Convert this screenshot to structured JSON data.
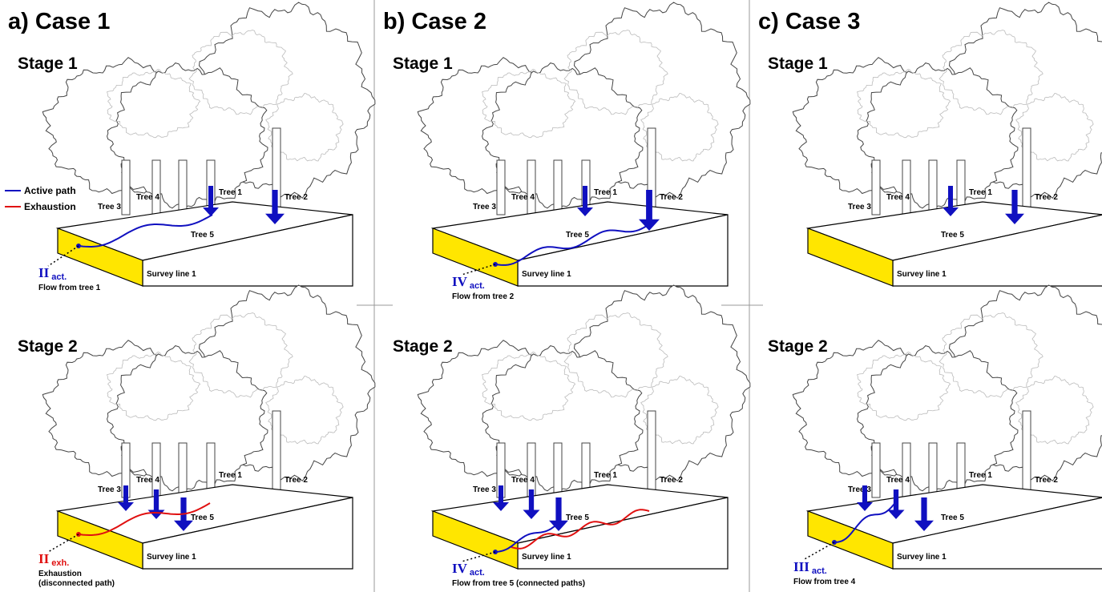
{
  "legend": {
    "active": "Active path",
    "exhaustion": "Exhaustion",
    "active_color": "#1010c0",
    "exhaustion_color": "#e01010"
  },
  "cases": [
    {
      "title": "a) Case 1",
      "stages": [
        {
          "title": "Stage 1",
          "trees": [
            "Tree 3",
            "Tree 4",
            "Tree 1",
            "Tree 5",
            "Tree 2"
          ],
          "survey_line": "Survey line 1",
          "label": {
            "main": "II",
            "sub": "act.",
            "color": "#1010c0"
          },
          "caption": [
            "Flow from tree 1"
          ]
        },
        {
          "title": "Stage 2",
          "trees": [
            "Tree 3",
            "Tree 4",
            "Tree 1",
            "Tree 5",
            "Tree 2"
          ],
          "survey_line": "Survey line 1",
          "label": {
            "main": "II",
            "sub": "exh.",
            "color": "#e01010"
          },
          "caption": [
            "Exhaustion",
            "(disconnected path)"
          ]
        }
      ]
    },
    {
      "title": "b) Case 2",
      "stages": [
        {
          "title": "Stage 1",
          "trees": [
            "Tree 3",
            "Tree 4",
            "Tree 1",
            "Tree 5",
            "Tree 2"
          ],
          "survey_line": "Survey line 1",
          "label": {
            "main": "IV",
            "sub": "act.",
            "color": "#1010c0"
          },
          "caption": [
            "Flow from tree 2"
          ]
        },
        {
          "title": "Stage 2",
          "trees": [
            "Tree 3",
            "Tree 4",
            "Tree 1",
            "Tree 5",
            "Tree 2"
          ],
          "survey_line": "Survey line 1",
          "label": {
            "main": "IV",
            "sub": "act.",
            "color": "#1010c0"
          },
          "caption": [
            "Flow from tree 5 (connected paths)"
          ]
        }
      ]
    },
    {
      "title": "c) Case 3",
      "stages": [
        {
          "title": "Stage 1",
          "trees": [
            "Tree 3",
            "Tree 4",
            "Tree 1",
            "Tree 5",
            "Tree 2"
          ],
          "survey_line": "Survey line 1"
        },
        {
          "title": "Stage 2",
          "trees": [
            "Tree 3",
            "Tree 4",
            "Tree 1",
            "Tree 5",
            "Tree 2"
          ],
          "survey_line": "Survey line 1",
          "label": {
            "main": "III",
            "sub": "act.",
            "color": "#1010c0"
          },
          "caption": [
            "Flow from tree 4"
          ]
        }
      ]
    }
  ]
}
